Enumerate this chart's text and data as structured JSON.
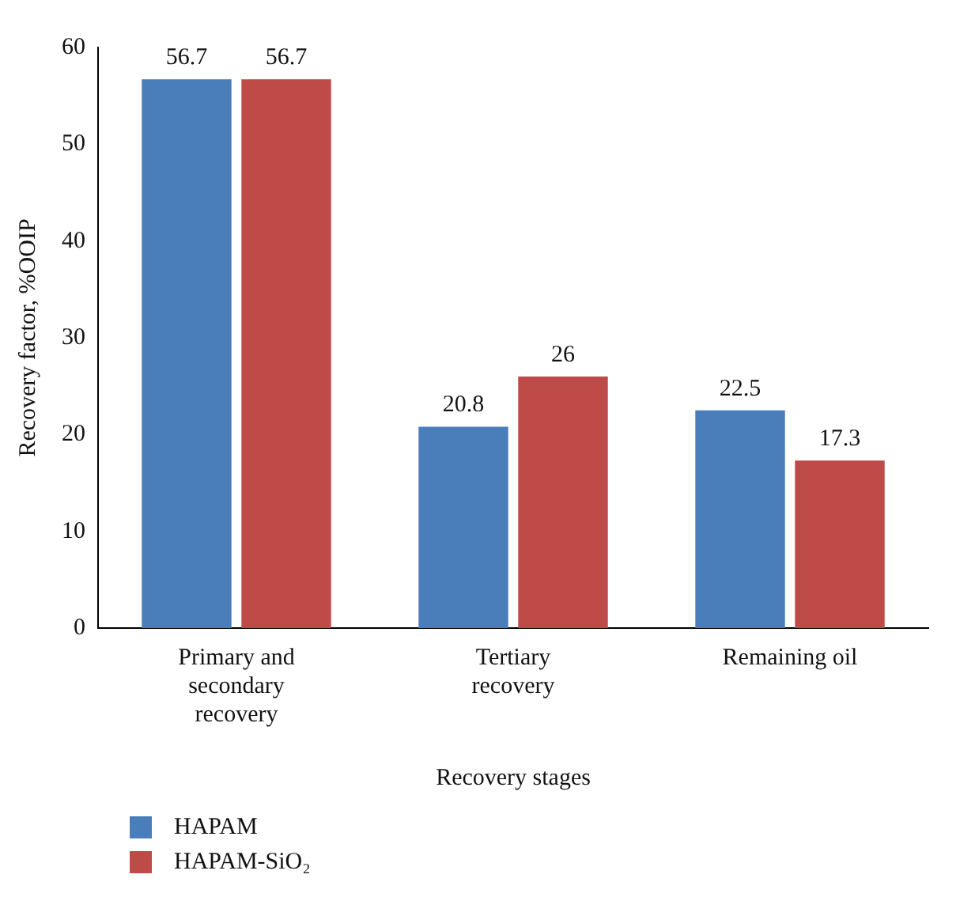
{
  "chart_data": {
    "type": "bar",
    "xlabel": "Recovery stages",
    "ylabel": "Recovery factor, %OOIP",
    "categories": [
      "Primary and secondary recovery",
      "Tertiary recovery",
      "Remaining oil"
    ],
    "series": [
      {
        "name": "HAPAM",
        "color": "#4a7ebb",
        "values": [
          56.7,
          20.8,
          22.5
        ]
      },
      {
        "name": "HAPAM-SiO₂",
        "color": "#be4b48",
        "values": [
          56.7,
          26,
          17.3
        ]
      }
    ],
    "ylim": [
      0,
      60
    ],
    "yticks": [
      0,
      10,
      20,
      30,
      40,
      50,
      60
    ],
    "grid": false,
    "legend": "bottom left",
    "data_labels": true
  }
}
